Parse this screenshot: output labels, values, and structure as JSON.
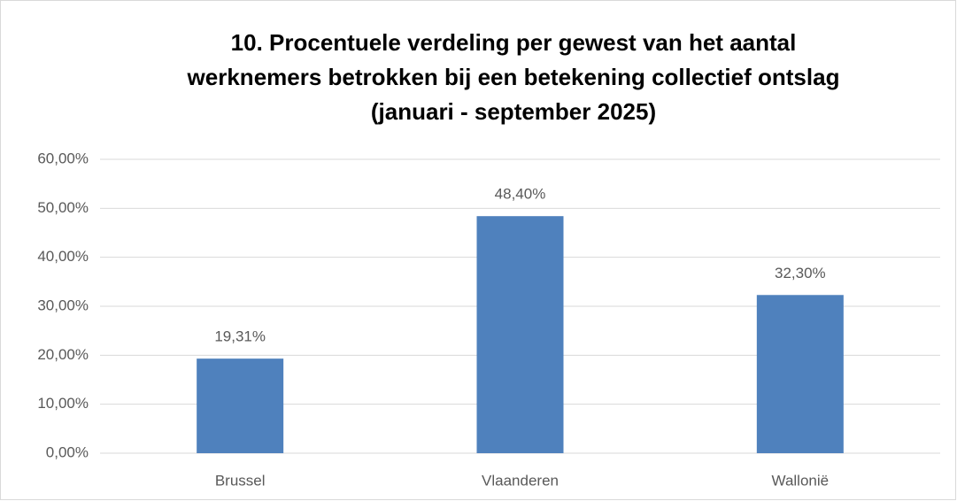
{
  "chart_data": {
    "type": "bar",
    "title": [
      "10. Procentuele verdeling per gewest van het aantal",
      "werknemers betrokken bij een betekening collectief ontslag",
      "(januari - september 2025)"
    ],
    "categories": [
      "Brussel",
      "Vlaanderen",
      "Wallonië"
    ],
    "values": [
      19.31,
      48.4,
      32.3
    ],
    "value_labels": [
      "19,31%",
      "48,40%",
      "32,30%"
    ],
    "color": "#4f81bd",
    "ylim": [
      0,
      60
    ],
    "yticks": [
      {
        "value": 0,
        "label": "0,00%"
      },
      {
        "value": 10,
        "label": "10,00%"
      },
      {
        "value": 20,
        "label": "20,00%"
      },
      {
        "value": 30,
        "label": "30,00%"
      },
      {
        "value": 40,
        "label": "40,00%"
      },
      {
        "value": 50,
        "label": "50,00%"
      },
      {
        "value": 60,
        "label": "60,00%"
      }
    ],
    "grid": true
  }
}
